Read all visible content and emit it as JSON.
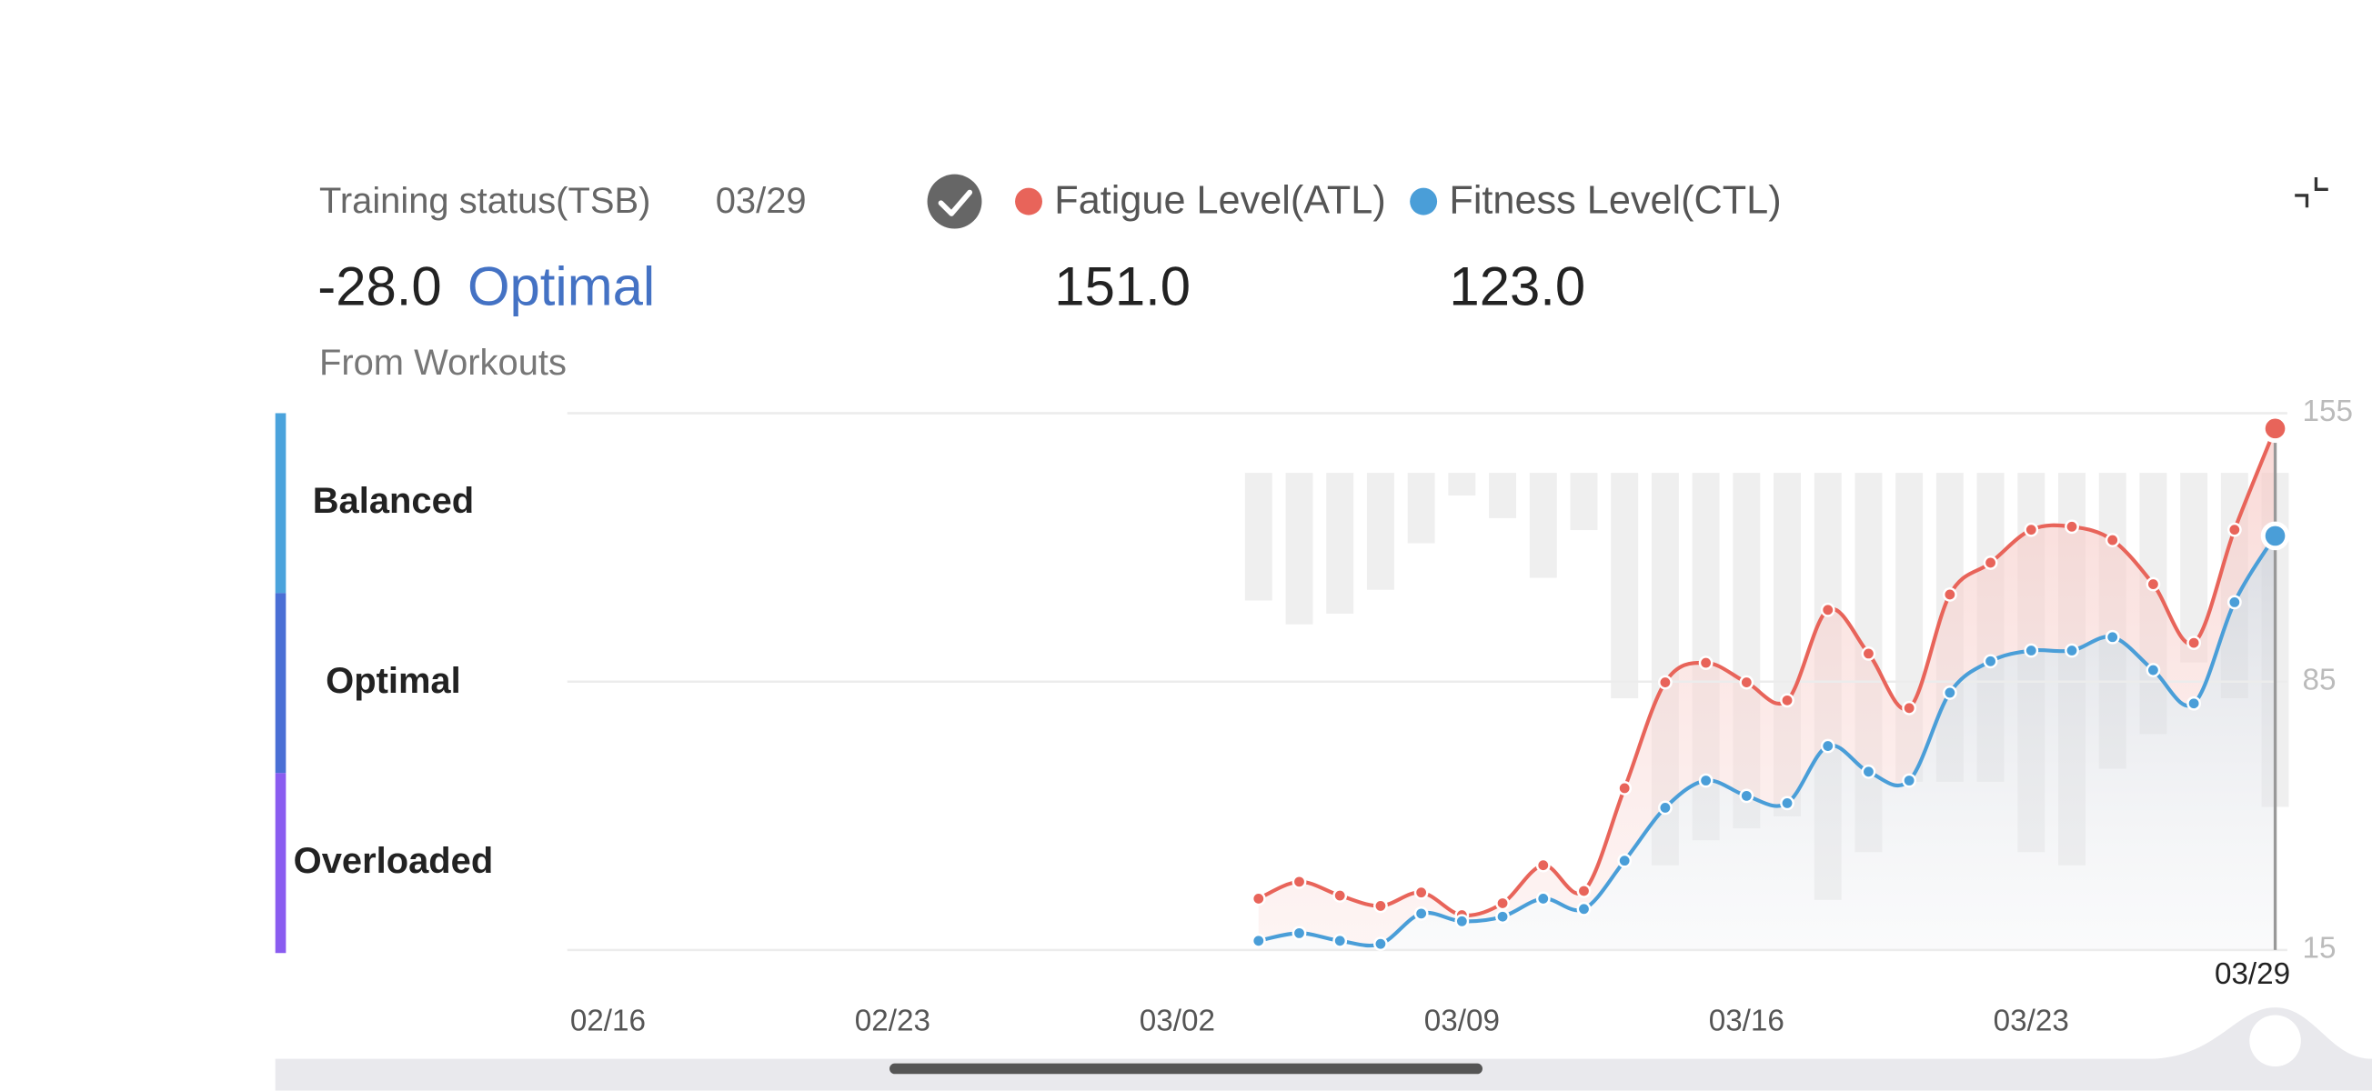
{
  "header": {
    "title": "Training status(TSB)",
    "date": "03/29",
    "tsb": "-28.0",
    "status": "Optimal",
    "source": "From Workouts"
  },
  "zones": {
    "labels": [
      "Balanced",
      "Optimal",
      "Overloaded"
    ],
    "colors": [
      "#4ba3dc",
      "#4a6fd5",
      "#8a5cf0"
    ]
  },
  "chart_data": {
    "type": "line",
    "x": [
      "03/04",
      "03/05",
      "03/06",
      "03/07",
      "03/08",
      "03/09",
      "03/10",
      "03/11",
      "03/12",
      "03/13",
      "03/14",
      "03/15",
      "03/16",
      "03/17",
      "03/18",
      "03/19",
      "03/20",
      "03/21",
      "03/22",
      "03/23",
      "03/24",
      "03/25",
      "03/26",
      "03/27",
      "03/28",
      "03/29"
    ],
    "series": [
      {
        "name": "Fatigue Level(ATL)",
        "color": "#e8645a",
        "current_label": "151.0",
        "values": [
          28.4,
          32.8,
          29.2,
          26.5,
          30,
          24.1,
          27.2,
          37.1,
          30.4,
          57.2,
          84.8,
          89.9,
          84.8,
          80.1,
          103.7,
          92.3,
          78.1,
          107.7,
          116,
          124.6,
          125.4,
          121.9,
          110.4,
          95.1,
          124.6,
          151
        ]
      },
      {
        "name": "Fitness Level(CTL)",
        "color": "#4a9ed8",
        "current_label": "123.0",
        "values": [
          17.4,
          19.4,
          17.4,
          16.6,
          24.5,
          22.5,
          23.7,
          28.4,
          25.7,
          38.3,
          52.1,
          59.2,
          55.2,
          53.3,
          68.2,
          61.5,
          59.2,
          82.1,
          90.3,
          93.1,
          93.1,
          96.6,
          88,
          79.3,
          105.7,
          123
        ]
      }
    ],
    "bars": {
      "color": "#efefef",
      "ylim": [
        -40,
        5
      ],
      "values": [
        -10.7,
        -12.7,
        -11.8,
        -9.8,
        -5.9,
        -1.9,
        -3.8,
        -8.8,
        -4.8,
        -18.9,
        -32.9,
        -30.8,
        -29.8,
        -28.8,
        -35.8,
        -31.8,
        -25.9,
        -25.9,
        -25.9,
        -31.8,
        -32.9,
        -24.8,
        -21.9,
        -15.9,
        -18.9,
        -28
      ]
    },
    "xlim": [
      "02/15",
      "03/29"
    ],
    "xticks": [
      "02/16",
      "02/23",
      "03/02",
      "03/09",
      "03/16",
      "03/23"
    ],
    "ylim": [
      15,
      155
    ],
    "yticks": [
      15,
      85,
      155
    ],
    "grid": true,
    "cursor": "03/29"
  }
}
